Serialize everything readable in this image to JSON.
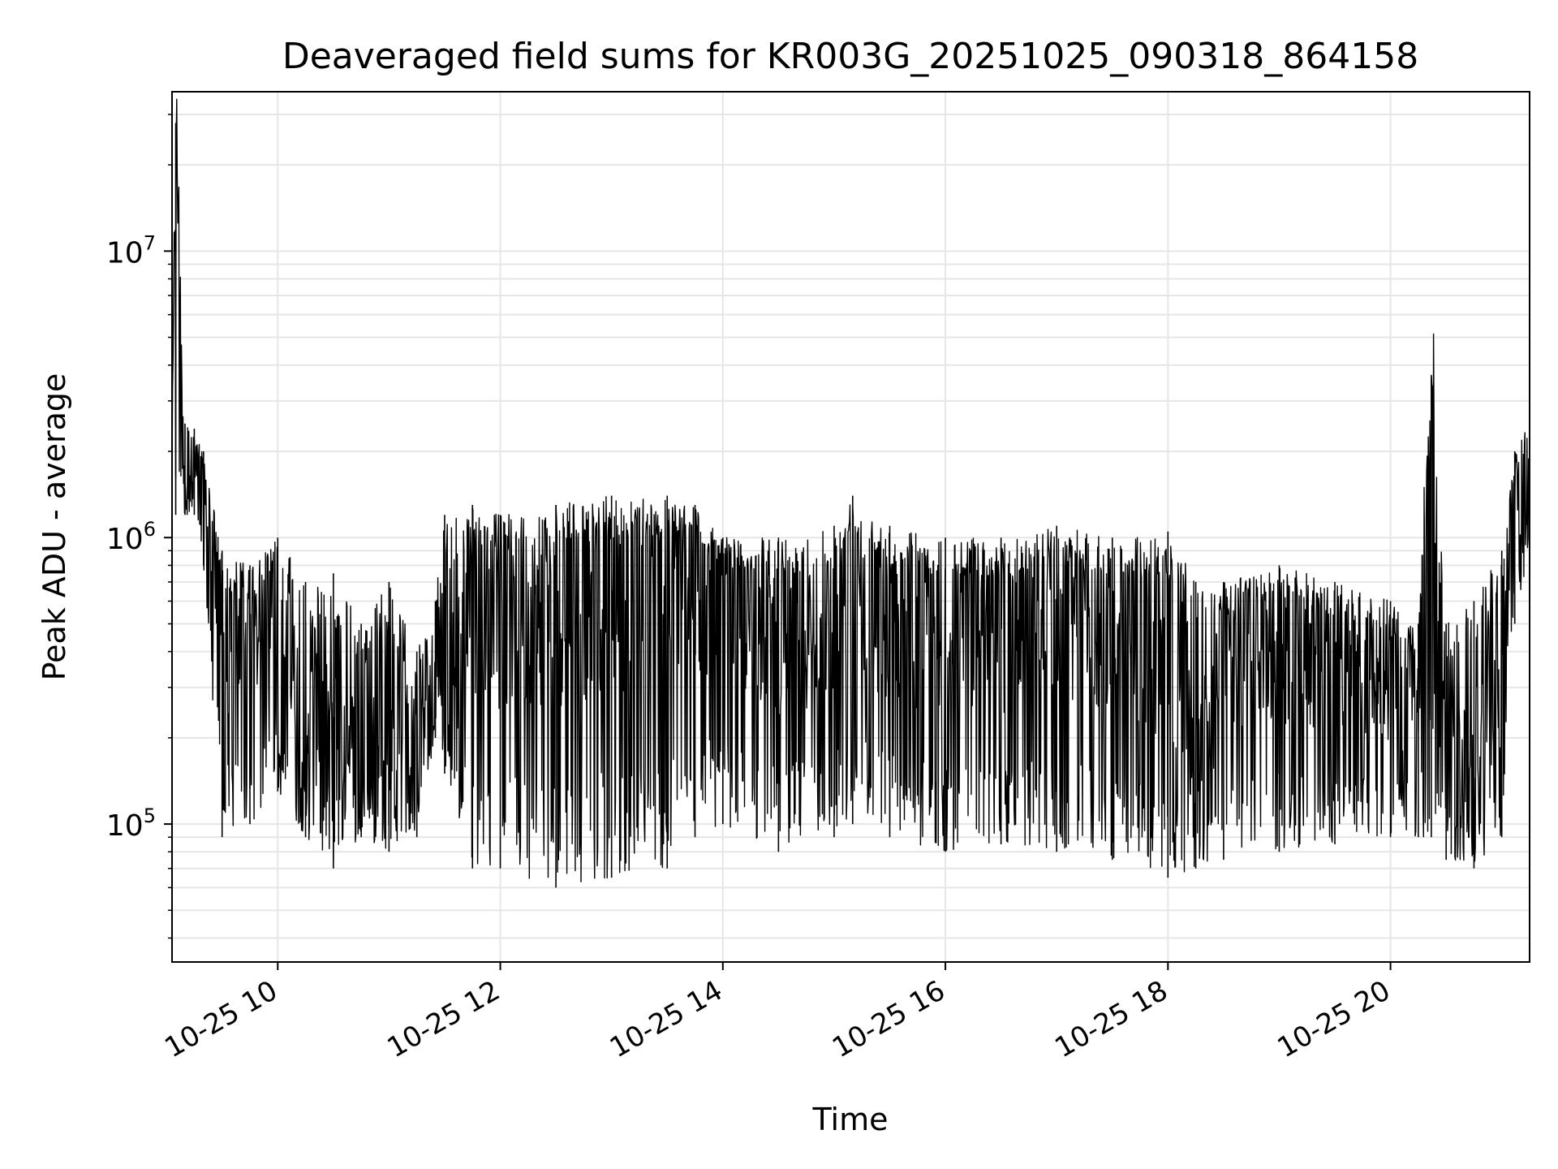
{
  "chart_data": {
    "type": "line",
    "title": "Deaveraged field sums for KR003G_20251025_090318_864158",
    "xlabel": "Time",
    "ylabel": "Peak ADU - average",
    "xlim": [
      "2025-10-25 09:03",
      "2025-10-25 21:15"
    ],
    "ylim": [
      33000,
      36000000
    ],
    "yscale": "log",
    "grid": true,
    "line_color": "#000000",
    "grid_color": "#e6e6e6",
    "x_ticks": [
      {
        "value": "2025-10-25 10:00",
        "label": "10-25 10"
      },
      {
        "value": "2025-10-25 12:00",
        "label": "10-25 12"
      },
      {
        "value": "2025-10-25 14:00",
        "label": "10-25 14"
      },
      {
        "value": "2025-10-25 16:00",
        "label": "10-25 16"
      },
      {
        "value": "2025-10-25 18:00",
        "label": "10-25 18"
      },
      {
        "value": "2025-10-25 20:00",
        "label": "10-25 20"
      }
    ],
    "y_ticks": [
      {
        "value": 100000,
        "base": "10",
        "exp": "5"
      },
      {
        "value": 1000000,
        "base": "10",
        "exp": "6"
      },
      {
        "value": 10000000,
        "base": "10",
        "exp": "7"
      }
    ],
    "series": [
      {
        "x": [
          "2025-10-25 09:03",
          "2025-10-25 09:05",
          "2025-10-25 09:10",
          "2025-10-25 09:15",
          "2025-10-25 09:20",
          "2025-10-25 09:30",
          "2025-10-25 09:45",
          "2025-10-25 10:00",
          "2025-10-25 10:15",
          "2025-10-25 10:30",
          "2025-10-25 10:45",
          "2025-10-25 11:00",
          "2025-10-25 11:15",
          "2025-10-25 11:25",
          "2025-10-25 11:30",
          "2025-10-25 11:45",
          "2025-10-25 12:00",
          "2025-10-25 12:30",
          "2025-10-25 13:00",
          "2025-10-25 13:30",
          "2025-10-25 13:45",
          "2025-10-25 14:00",
          "2025-10-25 14:30",
          "2025-10-25 15:00",
          "2025-10-25 15:10",
          "2025-10-25 15:30",
          "2025-10-25 16:00",
          "2025-10-25 16:30",
          "2025-10-25 17:00",
          "2025-10-25 17:30",
          "2025-10-25 18:00",
          "2025-10-25 18:15",
          "2025-10-25 18:30",
          "2025-10-25 19:00",
          "2025-10-25 19:30",
          "2025-10-25 20:00",
          "2025-10-25 20:15",
          "2025-10-25 20:22",
          "2025-10-25 20:30",
          "2025-10-25 20:45",
          "2025-10-25 21:00",
          "2025-10-25 21:07",
          "2025-10-25 21:15"
        ],
        "y": [
          1700000,
          28000000,
          1600000,
          1700000,
          1500000,
          400000,
          450000,
          450000,
          250000,
          200000,
          200000,
          180000,
          220000,
          350000,
          250000,
          600000,
          500000,
          550000,
          600000,
          650000,
          650000,
          550000,
          450000,
          500000,
          650000,
          500000,
          450000,
          450000,
          500000,
          450000,
          400000,
          150000,
          350000,
          400000,
          350000,
          300000,
          250000,
          3700000,
          200000,
          200000,
          300000,
          1300000,
          1500000
        ],
        "low": [
          1200000,
          1200000,
          1200000,
          1200000,
          800000,
          90000,
          100000,
          130000,
          90000,
          70000,
          90000,
          80000,
          90000,
          200000,
          150000,
          70000,
          70000,
          60000,
          65000,
          70000,
          90000,
          100000,
          80000,
          90000,
          100000,
          90000,
          80000,
          85000,
          80000,
          75000,
          65000,
          70000,
          75000,
          80000,
          85000,
          90000,
          90000,
          90000,
          75000,
          70000,
          90000,
          500000,
          900000
        ],
        "high": [
          2600000,
          28000000,
          2500000,
          2400000,
          2000000,
          900000,
          800000,
          1000000,
          700000,
          750000,
          500000,
          700000,
          400000,
          600000,
          1200000,
          1300000,
          1200000,
          1300000,
          1400000,
          1400000,
          1300000,
          1000000,
          1000000,
          1100000,
          1400000,
          1100000,
          1000000,
          1000000,
          1100000,
          1000000,
          1050000,
          700000,
          700000,
          800000,
          700000,
          600000,
          500000,
          3700000,
          500000,
          600000,
          900000,
          2000000,
          2700000
        ]
      }
    ]
  }
}
